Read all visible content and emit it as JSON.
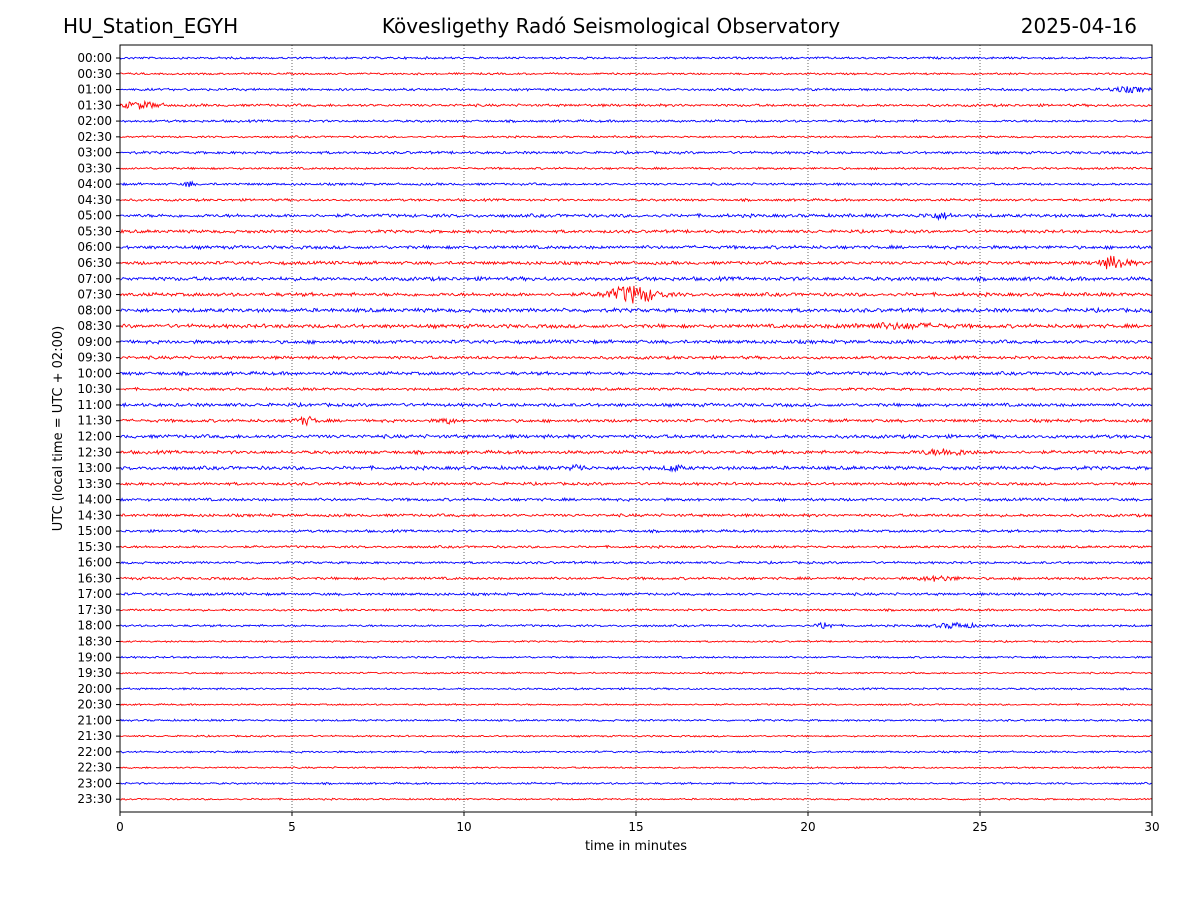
{
  "header": {
    "station": "HU_Station_EGYH",
    "observatory": "Kövesligethy Radó Seismological Observatory",
    "date": "2025-04-16"
  },
  "colors": {
    "even_trace": "#0000ff",
    "odd_trace": "#ff0000",
    "grid": "#000000"
  },
  "chart_data": {
    "type": "line",
    "title": "Kövesligethy Radó Seismological Observatory",
    "xlabel": "time in minutes",
    "ylabel": "UTC (local time = UTC + 02:00)",
    "xlim": [
      0,
      30
    ],
    "x_ticks": [
      "0",
      "5",
      "10",
      "15",
      "20",
      "25",
      "30"
    ],
    "grid": "vertical dotted at 5-minute intervals",
    "row_labels": [
      "00:00",
      "00:30",
      "01:00",
      "01:30",
      "02:00",
      "02:30",
      "03:00",
      "03:30",
      "04:00",
      "04:30",
      "05:00",
      "05:30",
      "06:00",
      "06:30",
      "07:00",
      "07:30",
      "08:00",
      "08:30",
      "09:00",
      "09:30",
      "10:00",
      "10:30",
      "11:00",
      "11:30",
      "12:00",
      "12:30",
      "13:00",
      "13:30",
      "14:00",
      "14:30",
      "15:00",
      "15:30",
      "16:00",
      "16:30",
      "17:00",
      "17:30",
      "18:00",
      "18:30",
      "19:00",
      "19:30",
      "20:00",
      "20:30",
      "21:00",
      "21:30",
      "22:00",
      "22:30",
      "23:00",
      "23:30"
    ],
    "row_noise": [
      0.9,
      0.8,
      1.0,
      1.1,
      1.0,
      0.8,
      1.1,
      0.9,
      1.0,
      1.0,
      1.4,
      1.3,
      1.4,
      1.4,
      1.6,
      1.5,
      1.6,
      1.6,
      1.5,
      1.3,
      1.4,
      1.1,
      1.4,
      1.3,
      1.5,
      1.4,
      1.5,
      1.2,
      1.2,
      1.2,
      1.1,
      1.0,
      1.0,
      1.1,
      1.1,
      0.9,
      0.9,
      0.7,
      0.8,
      0.7,
      0.8,
      0.7,
      0.8,
      0.7,
      0.8,
      0.7,
      0.8,
      0.7
    ],
    "events": [
      {
        "row": "01:00",
        "minute": 29.3,
        "amp": 2.2,
        "width": 0.8
      },
      {
        "row": "01:30",
        "minute": 0.6,
        "amp": 3.0,
        "width": 0.8
      },
      {
        "row": "04:00",
        "minute": 2.0,
        "amp": 3.5,
        "width": 0.15
      },
      {
        "row": "05:00",
        "minute": 23.8,
        "amp": 2.5,
        "width": 0.6
      },
      {
        "row": "06:30",
        "minute": 28.9,
        "amp": 6.0,
        "width": 0.6
      },
      {
        "row": "07:30",
        "minute": 14.9,
        "amp": 8.0,
        "width": 1.0
      },
      {
        "row": "08:30",
        "minute": 22.5,
        "amp": 2.0,
        "width": 2.0
      },
      {
        "row": "11:30",
        "minute": 5.4,
        "amp": 3.5,
        "width": 0.4
      },
      {
        "row": "11:30",
        "minute": 9.5,
        "amp": 2.5,
        "width": 0.3
      },
      {
        "row": "12:30",
        "minute": 24.0,
        "amp": 2.5,
        "width": 1.0
      },
      {
        "row": "13:00",
        "minute": 13.3,
        "amp": 3.0,
        "width": 0.3
      },
      {
        "row": "13:00",
        "minute": 16.1,
        "amp": 3.0,
        "width": 0.3
      },
      {
        "row": "16:30",
        "minute": 23.8,
        "amp": 2.0,
        "width": 0.8
      },
      {
        "row": "18:00",
        "minute": 20.5,
        "amp": 3.5,
        "width": 0.3
      },
      {
        "row": "18:00",
        "minute": 24.3,
        "amp": 2.5,
        "width": 0.8
      }
    ]
  }
}
